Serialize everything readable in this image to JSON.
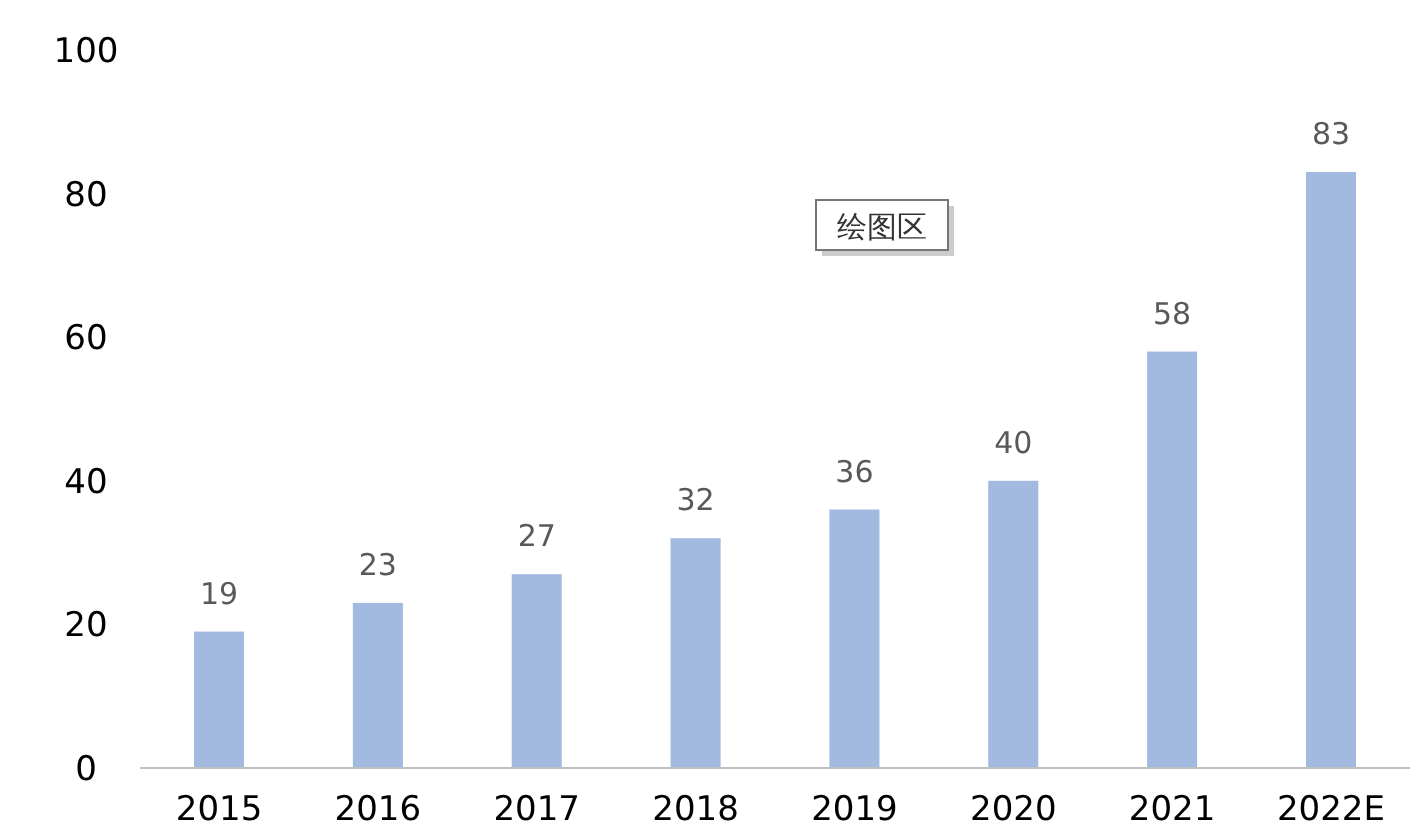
{
  "chart_data": {
    "type": "bar",
    "categories": [
      "2015",
      "2016",
      "2017",
      "2018",
      "2019",
      "2020",
      "2021",
      "2022E"
    ],
    "values": [
      19,
      23,
      27,
      32,
      36,
      40,
      58,
      83
    ],
    "color": "#a2b9e0",
    "ylim": [
      0,
      100
    ],
    "yticks": [
      0,
      20,
      40,
      60,
      80,
      100
    ],
    "grid": false,
    "data_labels": true,
    "annotations": [
      "绘图区"
    ]
  }
}
